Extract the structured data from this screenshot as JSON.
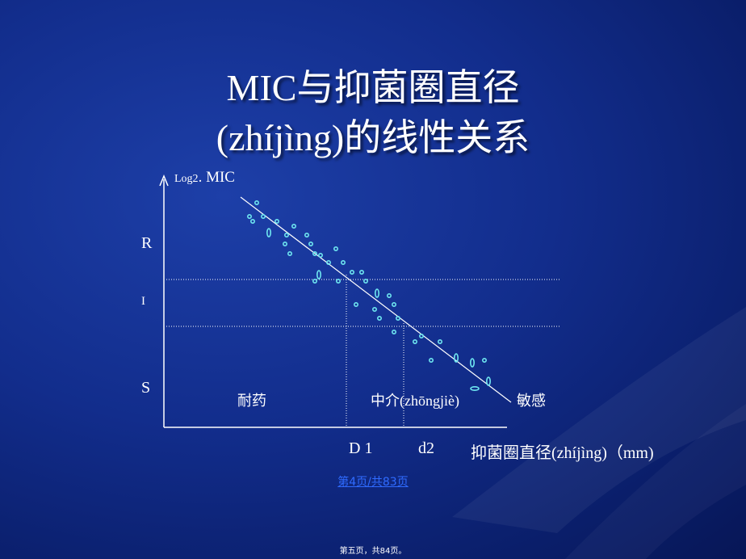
{
  "title": {
    "line1": "MIC与抑菌圈直径",
    "line2": "(zhíjìng)的线性关系"
  },
  "diagram": {
    "y_axis_label_prefix": "Log2",
    "y_axis_label_main": ". MIC",
    "x_axis_label": "抑菌圈直径(zhíjìng)（mm)",
    "levels": {
      "r": "R",
      "i": "I",
      "s": "S"
    },
    "breakpoints": {
      "d1": "D 1",
      "d2": "d2"
    },
    "zones": {
      "resistant": "耐药",
      "intermediate": "中介(zhōngjiè)",
      "sensitive": "敏感"
    }
  },
  "footer": {
    "page_link": "第4页/共83页",
    "page_note": "第五页，共84页。"
  },
  "colors": {
    "background": "#122d8c",
    "text": "#ffffff",
    "points": "#6ee6f0",
    "link": "#2f6bff"
  }
}
